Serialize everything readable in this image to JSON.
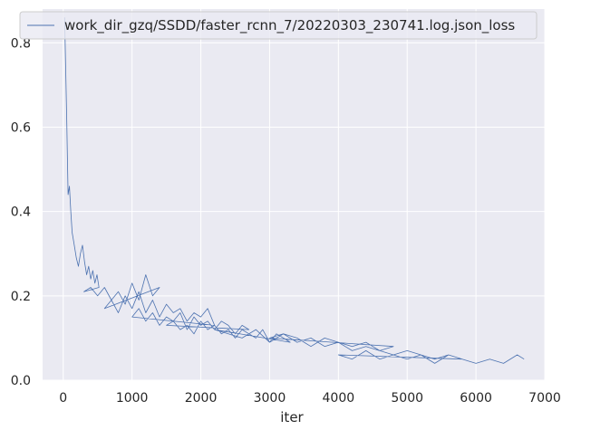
{
  "chart_data": {
    "type": "line",
    "title": "",
    "xlabel": "iter",
    "ylabel": "",
    "xlim": [
      -300,
      7000
    ],
    "ylim": [
      0,
      0.88
    ],
    "xticks": [
      0,
      1000,
      2000,
      3000,
      4000,
      5000,
      6000,
      7000
    ],
    "yticks": [
      0.0,
      0.2,
      0.4,
      0.6,
      0.8
    ],
    "xtick_labels": [
      "0",
      "1000",
      "2000",
      "3000",
      "4000",
      "5000",
      "6000",
      "7000"
    ],
    "ytick_labels": [
      "0.0",
      "0.2",
      "0.4",
      "0.6",
      "0.8"
    ],
    "grid": true,
    "legend_position": "top-left",
    "background": "#eaeaf2",
    "series": [
      {
        "name": "work_dir_gzq/SSDD/faster_rcnn_7/20220303_230741.log.json_loss",
        "color": "#4c72b0",
        "x": [
          20,
          50,
          70,
          90,
          110,
          130,
          150,
          170,
          190,
          220,
          250,
          280,
          310,
          340,
          370,
          400,
          430,
          460,
          490,
          520,
          300,
          400,
          500,
          600,
          700,
          800,
          900,
          1000,
          1100,
          1200,
          1300,
          1400,
          600,
          700,
          800,
          900,
          1000,
          1100,
          1200,
          1300,
          1400,
          1500,
          1600,
          1700,
          1800,
          1900,
          2000,
          2100,
          2200,
          1000,
          1100,
          1200,
          1300,
          1400,
          1500,
          1600,
          1700,
          1800,
          1900,
          2000,
          2100,
          2200,
          2300,
          2400,
          2500,
          2600,
          2700,
          1500,
          1600,
          1700,
          1800,
          1900,
          2000,
          2100,
          2200,
          2300,
          2400,
          2500,
          2600,
          2700,
          2800,
          2900,
          3000,
          3100,
          3200,
          3300,
          2200,
          2400,
          2600,
          2800,
          3000,
          3200,
          3400,
          3600,
          3800,
          4000,
          4200,
          4400,
          4600,
          4800,
          3000,
          3200,
          3400,
          3600,
          3800,
          4000,
          4200,
          4400,
          4600,
          4800,
          5000,
          5200,
          5400,
          5600,
          5800,
          4000,
          4200,
          4400,
          4600,
          4800,
          5000,
          5200,
          5400,
          5600,
          5800,
          6000,
          6200,
          6400,
          6600,
          6700
        ],
        "y": [
          0.86,
          0.62,
          0.44,
          0.46,
          0.4,
          0.35,
          0.33,
          0.31,
          0.29,
          0.27,
          0.3,
          0.32,
          0.28,
          0.25,
          0.27,
          0.24,
          0.26,
          0.23,
          0.25,
          0.22,
          0.21,
          0.22,
          0.2,
          0.22,
          0.19,
          0.21,
          0.18,
          0.23,
          0.19,
          0.25,
          0.2,
          0.22,
          0.17,
          0.19,
          0.16,
          0.2,
          0.17,
          0.21,
          0.16,
          0.19,
          0.15,
          0.18,
          0.16,
          0.17,
          0.14,
          0.16,
          0.15,
          0.17,
          0.13,
          0.15,
          0.17,
          0.14,
          0.16,
          0.13,
          0.15,
          0.14,
          0.16,
          0.12,
          0.15,
          0.13,
          0.14,
          0.12,
          0.14,
          0.13,
          0.11,
          0.13,
          0.12,
          0.13,
          0.14,
          0.12,
          0.13,
          0.11,
          0.14,
          0.12,
          0.13,
          0.11,
          0.12,
          0.1,
          0.12,
          0.11,
          0.1,
          0.12,
          0.09,
          0.11,
          0.1,
          0.09,
          0.12,
          0.11,
          0.1,
          0.12,
          0.09,
          0.11,
          0.1,
          0.08,
          0.1,
          0.09,
          0.08,
          0.09,
          0.07,
          0.08,
          0.1,
          0.11,
          0.09,
          0.1,
          0.08,
          0.09,
          0.07,
          0.08,
          0.07,
          0.06,
          0.07,
          0.06,
          0.05,
          0.06,
          0.05,
          0.06,
          0.05,
          0.07,
          0.05,
          0.06,
          0.05,
          0.06,
          0.04,
          0.06,
          0.05,
          0.04,
          0.05,
          0.04,
          0.06,
          0.05
        ]
      }
    ]
  }
}
